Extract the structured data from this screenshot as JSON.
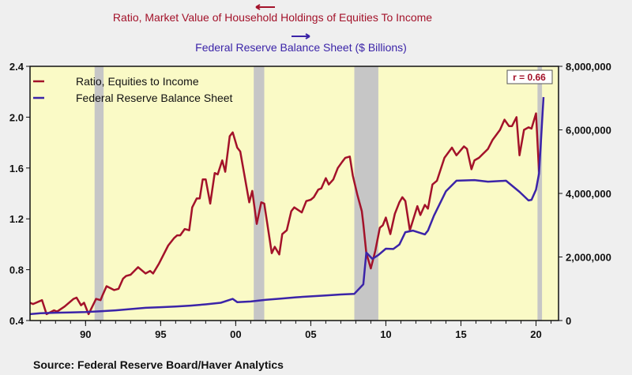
{
  "chart_data": {
    "type": "line",
    "titles": {
      "left_series_title": "Ratio, Market Value of Household Holdings of Equities To Income",
      "right_series_title": "Federal Reserve Balance Sheet ($ Billions)"
    },
    "annotation": "r = 0.66",
    "source": "Source:  Federal Reserve Board/Haver Analytics",
    "legend": [
      "Ratio, Equities to Income",
      "Federal Reserve Balance Sheet"
    ],
    "legend_placement": "top-left",
    "colors": {
      "ratio": "#a3122a",
      "fed": "#3b24a8",
      "plot_bg": "#fafac6",
      "recession": "#c6c6c6"
    },
    "xlim": [
      1986.3,
      2021.5
    ],
    "x_ticks": [
      {
        "v": 1990,
        "label": "90"
      },
      {
        "v": 1995,
        "label": "95"
      },
      {
        "v": 2000,
        "label": "00"
      },
      {
        "v": 2005,
        "label": "05"
      },
      {
        "v": 2010,
        "label": "10"
      },
      {
        "v": 2015,
        "label": "15"
      },
      {
        "v": 2020,
        "label": "20"
      }
    ],
    "y_left": {
      "lim": [
        0.4,
        2.4
      ],
      "ticks": [
        "0.4",
        "0.8",
        "1.2",
        "1.6",
        "2.0",
        "2.4"
      ]
    },
    "y_right": {
      "lim": [
        0,
        8000000
      ],
      "ticks": [
        "0",
        "2,000,000",
        "4,000,000",
        "6,000,000",
        "8,000,000"
      ]
    },
    "recessions": [
      [
        1990.6,
        1991.2
      ],
      [
        2001.2,
        2001.9
      ],
      [
        2007.9,
        2009.5
      ],
      [
        2020.1,
        2020.4
      ]
    ],
    "series": [
      {
        "name": "Ratio, Equities to Income",
        "axis": "left",
        "points": [
          [
            1986.3,
            0.54
          ],
          [
            1986.5,
            0.53
          ],
          [
            1987.1,
            0.56
          ],
          [
            1987.4,
            0.45
          ],
          [
            1987.9,
            0.48
          ],
          [
            1988.1,
            0.47
          ],
          [
            1988.6,
            0.51
          ],
          [
            1989.2,
            0.57
          ],
          [
            1989.4,
            0.58
          ],
          [
            1989.7,
            0.52
          ],
          [
            1989.9,
            0.54
          ],
          [
            1990.2,
            0.45
          ],
          [
            1990.7,
            0.57
          ],
          [
            1991.0,
            0.56
          ],
          [
            1991.1,
            0.59
          ],
          [
            1991.4,
            0.67
          ],
          [
            1991.9,
            0.64
          ],
          [
            1992.2,
            0.65
          ],
          [
            1992.5,
            0.73
          ],
          [
            1992.7,
            0.75
          ],
          [
            1993.0,
            0.76
          ],
          [
            1993.5,
            0.82
          ],
          [
            1994.0,
            0.77
          ],
          [
            1994.3,
            0.79
          ],
          [
            1994.5,
            0.77
          ],
          [
            1994.9,
            0.85
          ],
          [
            1995.5,
            0.99
          ],
          [
            1995.9,
            1.05
          ],
          [
            1996.1,
            1.07
          ],
          [
            1996.3,
            1.07
          ],
          [
            1996.6,
            1.12
          ],
          [
            1996.9,
            1.11
          ],
          [
            1997.1,
            1.29
          ],
          [
            1997.4,
            1.36
          ],
          [
            1997.6,
            1.36
          ],
          [
            1997.8,
            1.51
          ],
          [
            1998.0,
            1.51
          ],
          [
            1998.3,
            1.32
          ],
          [
            1998.6,
            1.56
          ],
          [
            1998.8,
            1.55
          ],
          [
            1999.1,
            1.66
          ],
          [
            1999.3,
            1.57
          ],
          [
            1999.6,
            1.85
          ],
          [
            1999.8,
            1.88
          ],
          [
            2000.1,
            1.76
          ],
          [
            2000.3,
            1.73
          ],
          [
            2000.9,
            1.33
          ],
          [
            2001.1,
            1.42
          ],
          [
            2001.4,
            1.16
          ],
          [
            2001.7,
            1.33
          ],
          [
            2001.9,
            1.32
          ],
          [
            2002.4,
            0.93
          ],
          [
            2002.6,
            0.98
          ],
          [
            2002.9,
            0.92
          ],
          [
            2003.1,
            1.08
          ],
          [
            2003.4,
            1.11
          ],
          [
            2003.7,
            1.26
          ],
          [
            2003.9,
            1.29
          ],
          [
            2004.4,
            1.25
          ],
          [
            2004.7,
            1.34
          ],
          [
            2005.0,
            1.35
          ],
          [
            2005.2,
            1.37
          ],
          [
            2005.5,
            1.43
          ],
          [
            2005.7,
            1.44
          ],
          [
            2006.0,
            1.52
          ],
          [
            2006.2,
            1.47
          ],
          [
            2006.5,
            1.51
          ],
          [
            2006.8,
            1.6
          ],
          [
            2007.1,
            1.65
          ],
          [
            2007.3,
            1.68
          ],
          [
            2007.6,
            1.69
          ],
          [
            2007.8,
            1.54
          ],
          [
            2008.1,
            1.39
          ],
          [
            2008.4,
            1.26
          ],
          [
            2008.5,
            1.16
          ],
          [
            2008.7,
            0.93
          ],
          [
            2009.0,
            0.81
          ],
          [
            2009.3,
            0.95
          ],
          [
            2009.6,
            1.13
          ],
          [
            2009.8,
            1.15
          ],
          [
            2010.0,
            1.21
          ],
          [
            2010.3,
            1.08
          ],
          [
            2010.6,
            1.24
          ],
          [
            2010.9,
            1.33
          ],
          [
            2011.1,
            1.37
          ],
          [
            2011.3,
            1.34
          ],
          [
            2011.6,
            1.11
          ],
          [
            2012.1,
            1.3
          ],
          [
            2012.3,
            1.23
          ],
          [
            2012.6,
            1.31
          ],
          [
            2012.8,
            1.28
          ],
          [
            2013.1,
            1.47
          ],
          [
            2013.4,
            1.5
          ],
          [
            2013.9,
            1.68
          ],
          [
            2014.4,
            1.76
          ],
          [
            2014.7,
            1.7
          ],
          [
            2015.2,
            1.77
          ],
          [
            2015.4,
            1.75
          ],
          [
            2015.7,
            1.59
          ],
          [
            2015.9,
            1.66
          ],
          [
            2016.2,
            1.68
          ],
          [
            2016.8,
            1.75
          ],
          [
            2017.1,
            1.82
          ],
          [
            2017.6,
            1.9
          ],
          [
            2017.9,
            1.98
          ],
          [
            2018.2,
            1.93
          ],
          [
            2018.4,
            1.93
          ],
          [
            2018.7,
            2.0
          ],
          [
            2018.9,
            1.7
          ],
          [
            2019.2,
            1.9
          ],
          [
            2019.5,
            1.92
          ],
          [
            2019.7,
            1.91
          ],
          [
            2020.0,
            2.03
          ],
          [
            2020.2,
            1.57
          ]
        ]
      },
      {
        "name": "Federal Reserve Balance Sheet",
        "axis": "right",
        "points": [
          [
            1986.3,
            200000
          ],
          [
            1987.0,
            230000
          ],
          [
            1988.0,
            245000
          ],
          [
            1989.0,
            255000
          ],
          [
            1990.0,
            265000
          ],
          [
            1991.0,
            290000
          ],
          [
            1992.0,
            320000
          ],
          [
            1993.0,
            360000
          ],
          [
            1994.0,
            400000
          ],
          [
            1995.0,
            420000
          ],
          [
            1996.0,
            440000
          ],
          [
            1997.0,
            470000
          ],
          [
            1998.0,
            510000
          ],
          [
            1999.0,
            560000
          ],
          [
            1999.8,
            680000
          ],
          [
            2000.1,
            580000
          ],
          [
            2001.0,
            600000
          ],
          [
            2002.0,
            650000
          ],
          [
            2003.0,
            690000
          ],
          [
            2004.0,
            730000
          ],
          [
            2005.0,
            760000
          ],
          [
            2006.0,
            790000
          ],
          [
            2007.0,
            820000
          ],
          [
            2007.9,
            840000
          ],
          [
            2008.5,
            1140000
          ],
          [
            2008.7,
            2140000
          ],
          [
            2009.1,
            1940000
          ],
          [
            2009.5,
            2060000
          ],
          [
            2010.0,
            2260000
          ],
          [
            2010.5,
            2250000
          ],
          [
            2010.9,
            2390000
          ],
          [
            2011.3,
            2780000
          ],
          [
            2011.8,
            2830000
          ],
          [
            2012.6,
            2710000
          ],
          [
            2012.8,
            2830000
          ],
          [
            2013.2,
            3300000
          ],
          [
            2014.0,
            4070000
          ],
          [
            2014.7,
            4400000
          ],
          [
            2015.9,
            4420000
          ],
          [
            2016.8,
            4370000
          ],
          [
            2018.0,
            4400000
          ],
          [
            2018.9,
            4050000
          ],
          [
            2019.5,
            3780000
          ],
          [
            2019.7,
            3800000
          ],
          [
            2020.0,
            4120000
          ],
          [
            2020.2,
            4620000
          ],
          [
            2020.5,
            7030000
          ]
        ]
      }
    ]
  }
}
